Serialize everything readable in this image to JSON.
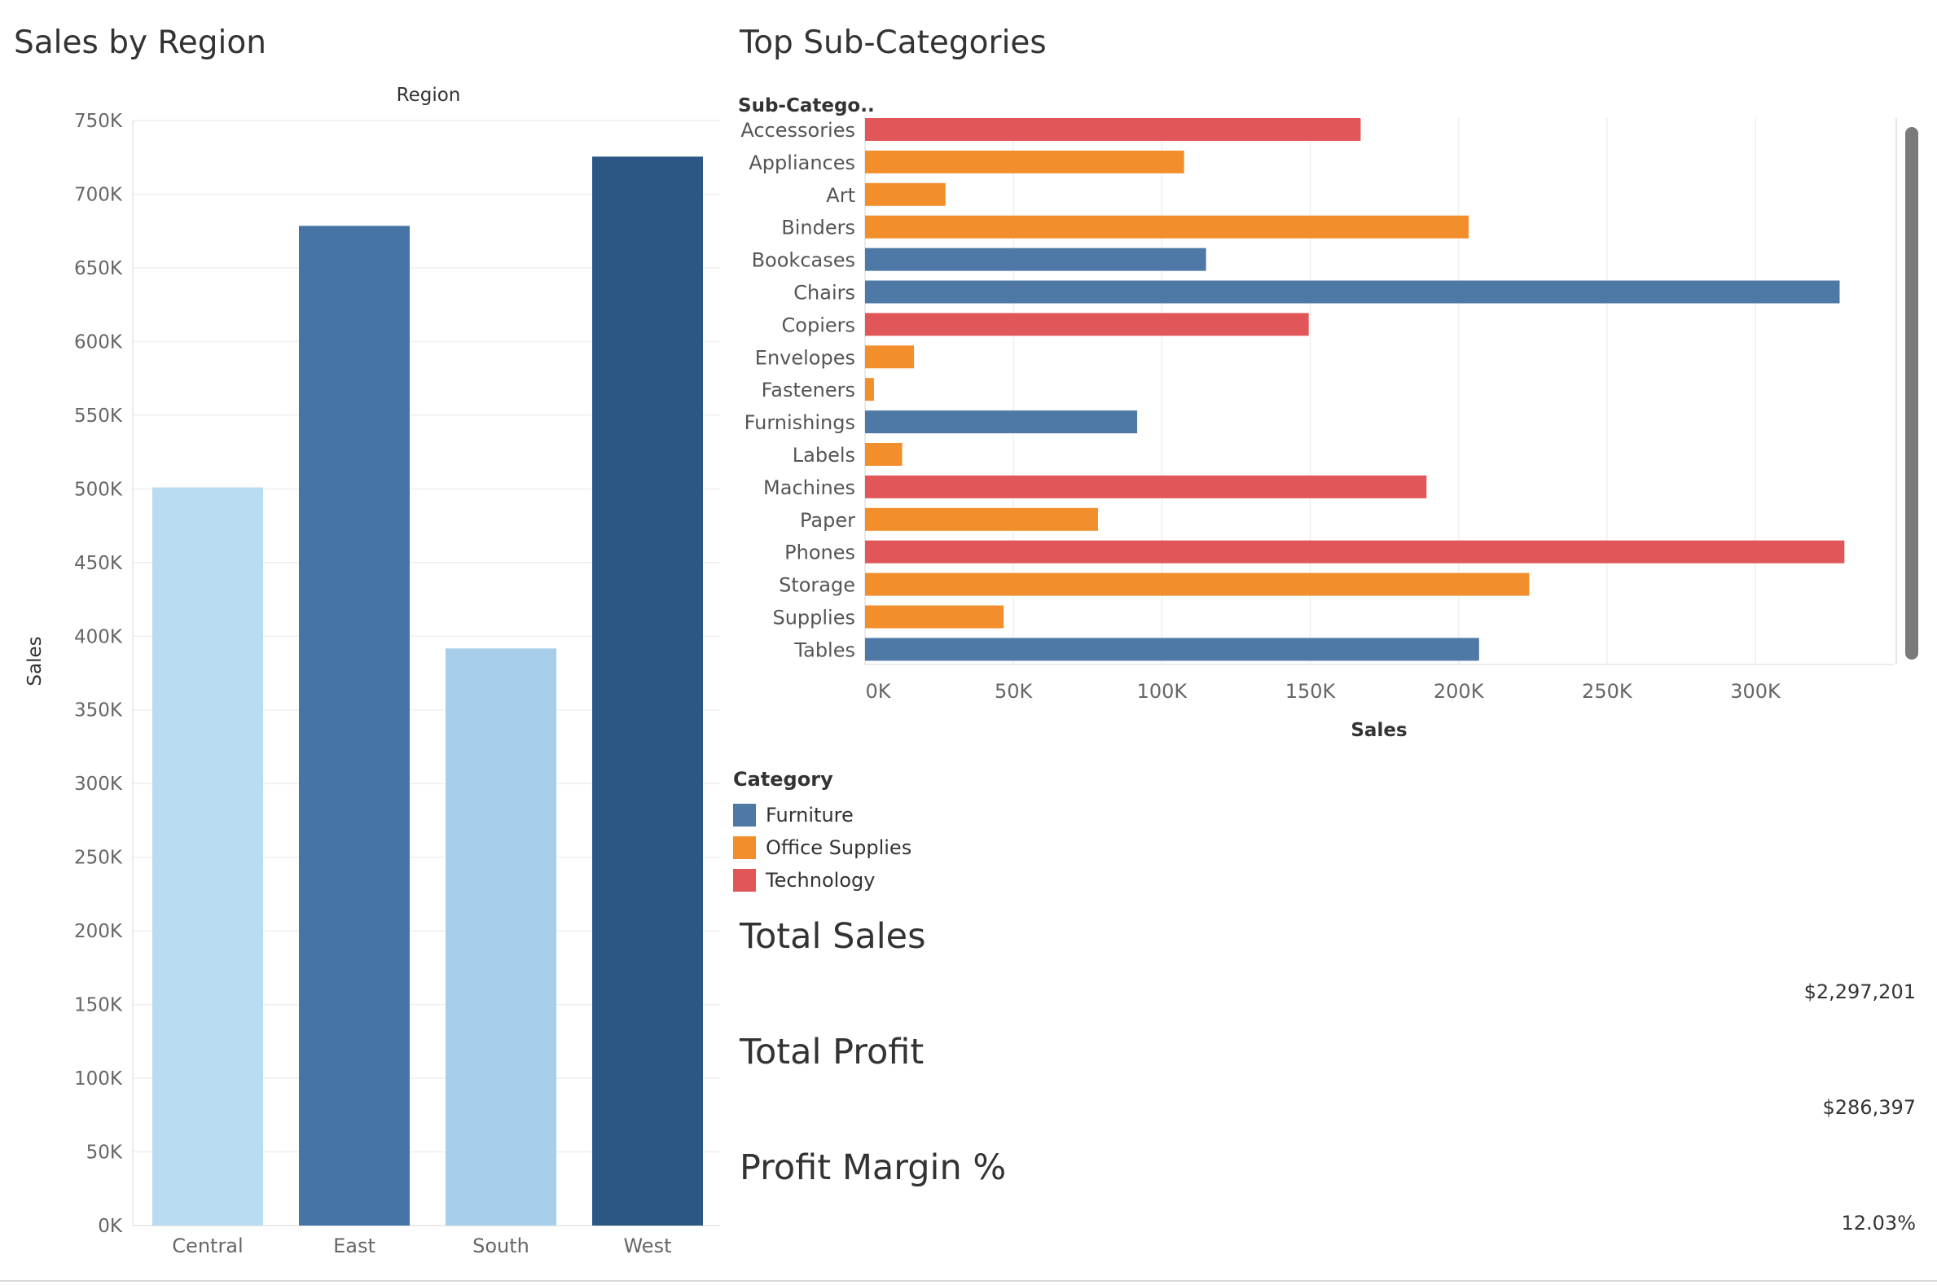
{
  "region_chart": {
    "title": "Sales by Region",
    "chart_data": {
      "type": "bar",
      "header": "Region",
      "categories": [
        "Central",
        "East",
        "South",
        "West"
      ],
      "values": [
        501000,
        678500,
        391700,
        725500
      ],
      "ylabel": "Sales",
      "ylim": [
        0,
        750000
      ],
      "yticks": [
        "0K",
        "50K",
        "100K",
        "150K",
        "200K",
        "250K",
        "300K",
        "350K",
        "400K",
        "450K",
        "500K",
        "550K",
        "600K",
        "650K",
        "700K",
        "750K"
      ],
      "colors": [
        "#b9dcf0",
        "#4674a6",
        "#a7cfe9",
        "#2c5784"
      ],
      "grid": true
    }
  },
  "subcat_chart": {
    "title": "Top Sub-Categories",
    "chart_data": {
      "type": "bar",
      "orientation": "horizontal",
      "header": "Sub-Catego..",
      "categories": [
        "Accessories",
        "Appliances",
        "Art",
        "Binders",
        "Bookcases",
        "Chairs",
        "Copiers",
        "Envelopes",
        "Fasteners",
        "Furnishings",
        "Labels",
        "Machines",
        "Paper",
        "Phones",
        "Storage",
        "Supplies",
        "Tables"
      ],
      "values": [
        167000,
        107500,
        27100,
        203400,
        114900,
        328400,
        149500,
        16500,
        3000,
        91700,
        12500,
        189200,
        78500,
        330000,
        223800,
        46700,
        206900
      ],
      "category_of": [
        "Technology",
        "Office Supplies",
        "Office Supplies",
        "Office Supplies",
        "Furniture",
        "Furniture",
        "Technology",
        "Office Supplies",
        "Office Supplies",
        "Furniture",
        "Office Supplies",
        "Technology",
        "Office Supplies",
        "Technology",
        "Office Supplies",
        "Office Supplies",
        "Furniture"
      ],
      "xlabel": "Sales",
      "xlim": [
        0,
        350000
      ],
      "xticks": [
        "0K",
        "50K",
        "100K",
        "150K",
        "200K",
        "250K",
        "300K"
      ],
      "grid": true
    }
  },
  "legend": {
    "title": "Category",
    "items": [
      {
        "label": "Furniture",
        "color": "#4e79a7"
      },
      {
        "label": "Office Supplies",
        "color": "#f28e2b"
      },
      {
        "label": "Technology",
        "color": "#e15759"
      }
    ]
  },
  "kpis": [
    {
      "title": "Total Sales",
      "value": "$2,297,201"
    },
    {
      "title": "Total Profit",
      "value": "$286,397"
    },
    {
      "title": "Profit Margin %",
      "value": "12.03%"
    }
  ]
}
